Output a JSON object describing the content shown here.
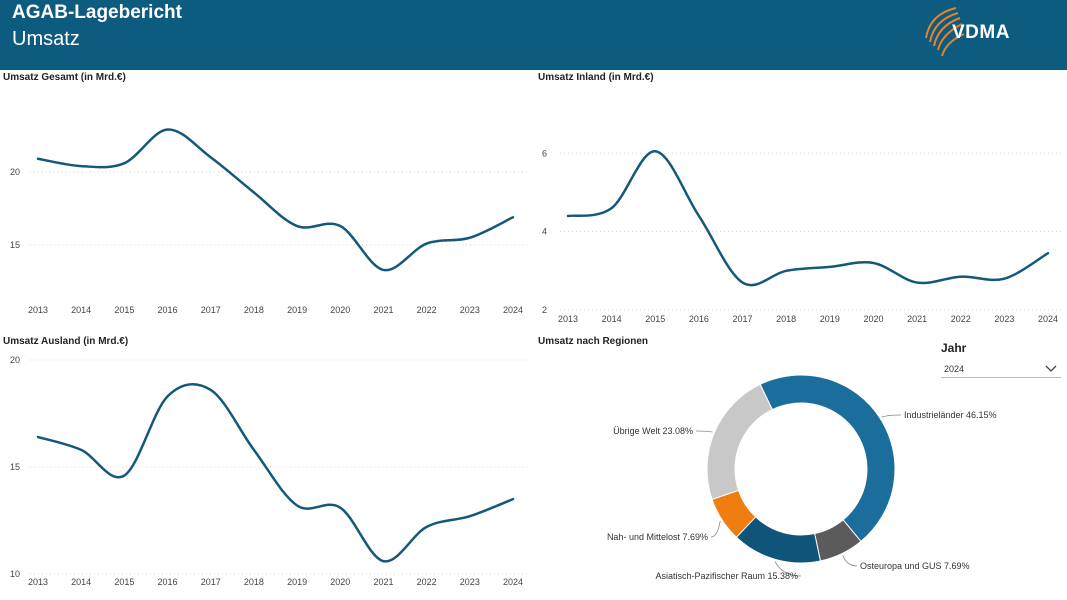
{
  "header": {
    "title": "AGAB-Lagebericht",
    "subtitle": "Umsatz",
    "logo_text": "VDMA"
  },
  "filter": {
    "label": "Jahr",
    "value": "2024",
    "icon": "chevron-down-icon"
  },
  "colors": {
    "header": "#0d5b7f",
    "line": "#14587a"
  },
  "chart_data": [
    {
      "type": "line",
      "title": "Umsatz Gesamt (in Mrd.€)",
      "categories": [
        "2013",
        "2014",
        "2015",
        "2016",
        "2017",
        "2018",
        "2019",
        "2020",
        "2021",
        "2022",
        "2023",
        "2024"
      ],
      "values": [
        20.9,
        20.4,
        20.6,
        22.9,
        21.0,
        18.6,
        16.3,
        16.3,
        13.3,
        15.1,
        15.5,
        16.9
      ],
      "yticks": [
        15,
        20
      ],
      "ylim": [
        12.2,
        24.1
      ],
      "grid": true
    },
    {
      "type": "line",
      "title": "Umsatz Inland (in Mrd.€)",
      "categories": [
        "2013",
        "2014",
        "2015",
        "2016",
        "2017",
        "2018",
        "2019",
        "2020",
        "2021",
        "2022",
        "2023",
        "2024"
      ],
      "values": [
        4.4,
        4.6,
        6.05,
        4.4,
        2.7,
        3.0,
        3.1,
        3.2,
        2.7,
        2.85,
        2.8,
        3.45
      ],
      "yticks": [
        2,
        4,
        6
      ],
      "ylim": [
        2,
        6.9
      ],
      "grid": true
    },
    {
      "type": "line",
      "title": "Umsatz Ausland (in Mrd.€)",
      "categories": [
        "2013",
        "2014",
        "2015",
        "2016",
        "2017",
        "2018",
        "2019",
        "2020",
        "2021",
        "2022",
        "2023",
        "2024"
      ],
      "values": [
        16.4,
        15.8,
        14.6,
        18.3,
        18.6,
        15.8,
        13.2,
        13.1,
        10.6,
        12.2,
        12.7,
        13.5
      ],
      "yticks": [
        10,
        15,
        20
      ],
      "ylim": [
        10,
        20
      ],
      "grid": true
    },
    {
      "type": "pie",
      "title": "Umsatz nach Regionen",
      "slices": [
        {
          "label": "Industrieländer 46.15%",
          "value": 46.15,
          "color": "#1b6e9c"
        },
        {
          "label": "Osteuropa und GUS 7.69%",
          "value": 7.69,
          "color": "#5b5b5b"
        },
        {
          "label": "Asiatisch-Pazifischer Raum 15.38%",
          "value": 15.38,
          "color": "#0e5579"
        },
        {
          "label": "Nah- und Mittelost 7.69%",
          "value": 7.69,
          "color": "#f07d10"
        },
        {
          "label": "Übrige Welt 23.08%",
          "value": 23.08,
          "color": "#c8c8c8"
        }
      ]
    }
  ]
}
